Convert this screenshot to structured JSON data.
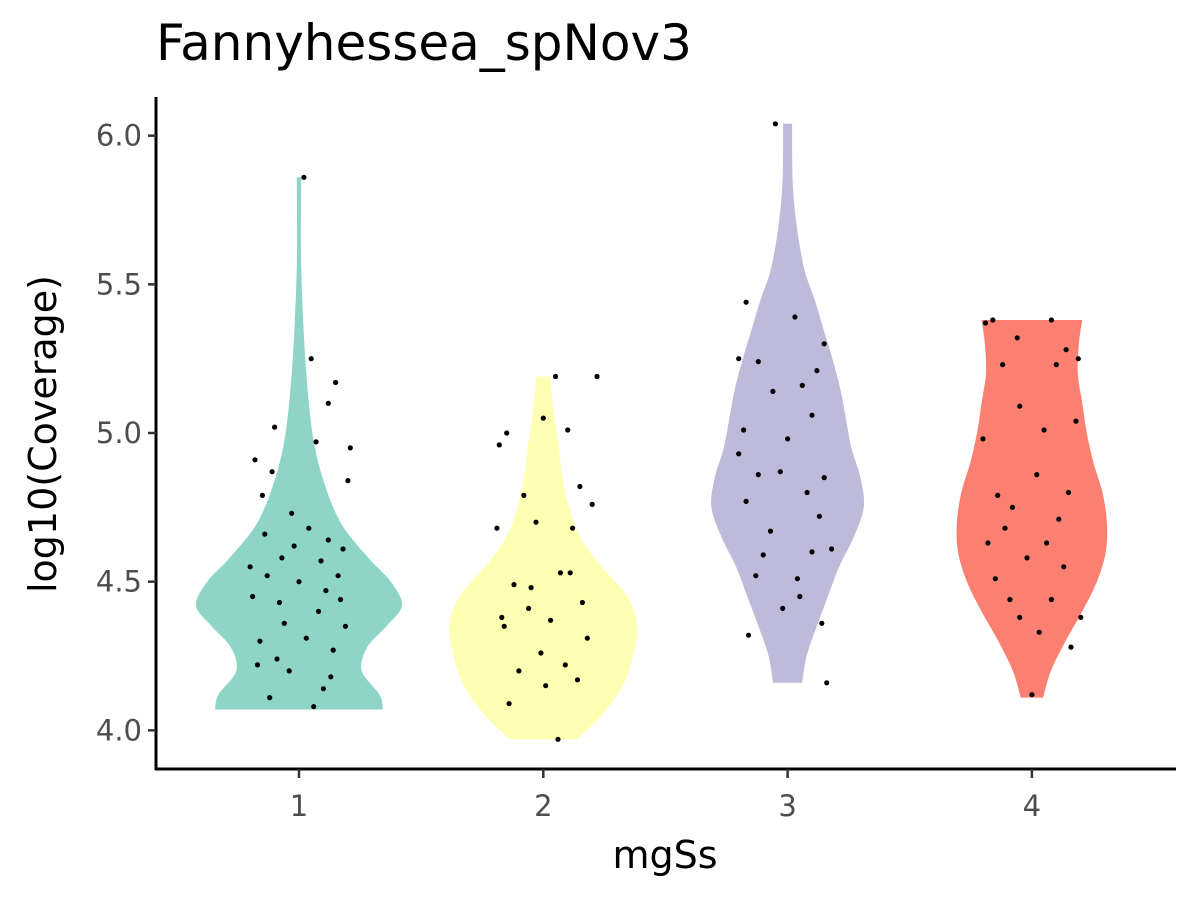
{
  "chart_data": {
    "type": "violin",
    "title": "Fannyhessea_spNov3",
    "xlabel": "mgSs",
    "ylabel": "log10(Coverage)",
    "categories": [
      "1",
      "2",
      "3",
      "4"
    ],
    "ylim": [
      3.87,
      6.13
    ],
    "yticks": [
      4.0,
      4.5,
      5.0,
      5.5,
      6.0
    ],
    "ytick_labels": [
      "4.0",
      "4.5",
      "5.0",
      "5.5",
      "6.0"
    ],
    "grid": false,
    "legend": "none",
    "series": [
      {
        "category": "1",
        "color": "#8ED5C8",
        "ymin": 4.07,
        "ymax": 5.86,
        "density": [
          [
            4.07,
            0.75
          ],
          [
            4.12,
            0.72
          ],
          [
            4.2,
            0.56
          ],
          [
            4.28,
            0.61
          ],
          [
            4.35,
            0.78
          ],
          [
            4.42,
            0.92
          ],
          [
            4.5,
            0.82
          ],
          [
            4.58,
            0.62
          ],
          [
            4.7,
            0.37
          ],
          [
            4.85,
            0.21
          ],
          [
            5.0,
            0.12
          ],
          [
            5.2,
            0.065
          ],
          [
            5.4,
            0.035
          ],
          [
            5.6,
            0.018
          ],
          [
            5.86,
            0.02
          ]
        ],
        "points": [
          [
            -0.18,
            4.91
          ],
          [
            0.02,
            5.86
          ],
          [
            0.05,
            5.25
          ],
          [
            -0.1,
            5.02
          ],
          [
            0.12,
            5.1
          ],
          [
            -0.15,
            4.79
          ],
          [
            0.2,
            4.84
          ],
          [
            -0.2,
            4.55
          ],
          [
            0.18,
            4.61
          ],
          [
            -0.08,
            4.43
          ],
          [
            0.08,
            4.4
          ],
          [
            -0.16,
            4.3
          ],
          [
            0.14,
            4.27
          ],
          [
            -0.04,
            4.2
          ],
          [
            0.1,
            4.14
          ],
          [
            -0.12,
            4.11
          ],
          [
            0.06,
            4.08
          ],
          [
            0.16,
            4.52
          ],
          [
            -0.02,
            4.62
          ],
          [
            0.04,
            4.68
          ],
          [
            -0.14,
            4.66
          ],
          [
            0.11,
            4.47
          ],
          [
            -0.06,
            4.36
          ],
          [
            0.19,
            4.35
          ],
          [
            -0.19,
            4.45
          ],
          [
            0.0,
            4.5
          ],
          [
            0.13,
            4.18
          ],
          [
            -0.09,
            4.24
          ],
          [
            0.07,
            4.97
          ],
          [
            -0.11,
            4.87
          ],
          [
            0.15,
            5.17
          ],
          [
            -0.03,
            4.73
          ],
          [
            0.09,
            4.57
          ],
          [
            -0.17,
            4.22
          ],
          [
            0.17,
            4.44
          ],
          [
            0.03,
            4.31
          ],
          [
            -0.07,
            4.58
          ],
          [
            0.12,
            4.64
          ],
          [
            -0.13,
            4.52
          ],
          [
            0.21,
            4.95
          ]
        ]
      },
      {
        "category": "2",
        "color": "#FFFFB3",
        "ymin": 3.97,
        "ymax": 5.19,
        "density": [
          [
            3.97,
            0.3
          ],
          [
            4.05,
            0.52
          ],
          [
            4.15,
            0.71
          ],
          [
            4.25,
            0.8
          ],
          [
            4.35,
            0.84
          ],
          [
            4.45,
            0.75
          ],
          [
            4.55,
            0.52
          ],
          [
            4.65,
            0.33
          ],
          [
            4.75,
            0.23
          ],
          [
            4.85,
            0.17
          ],
          [
            4.95,
            0.14
          ],
          [
            5.05,
            0.1
          ],
          [
            5.12,
            0.08
          ],
          [
            5.19,
            0.06
          ]
        ],
        "points": [
          [
            0.22,
            5.19
          ],
          [
            0.05,
            5.19
          ],
          [
            0.0,
            5.05
          ],
          [
            -0.15,
            5.0
          ],
          [
            0.1,
            5.01
          ],
          [
            -0.18,
            4.96
          ],
          [
            0.15,
            4.82
          ],
          [
            -0.08,
            4.79
          ],
          [
            0.2,
            4.76
          ],
          [
            -0.19,
            4.68
          ],
          [
            0.12,
            4.68
          ],
          [
            -0.03,
            4.7
          ],
          [
            0.07,
            4.53
          ],
          [
            -0.12,
            4.49
          ],
          [
            0.16,
            4.43
          ],
          [
            -0.06,
            4.41
          ],
          [
            0.03,
            4.37
          ],
          [
            -0.16,
            4.35
          ],
          [
            0.18,
            4.31
          ],
          [
            -0.01,
            4.26
          ],
          [
            0.09,
            4.22
          ],
          [
            -0.1,
            4.2
          ],
          [
            0.14,
            4.17
          ],
          [
            -0.14,
            4.09
          ],
          [
            0.06,
            3.97
          ],
          [
            -0.05,
            4.48
          ],
          [
            0.11,
            4.53
          ],
          [
            -0.17,
            4.38
          ],
          [
            0.01,
            4.15
          ]
        ]
      },
      {
        "category": "3",
        "color": "#BEBADA",
        "ymin": 4.16,
        "ymax": 6.04,
        "density": [
          [
            4.16,
            0.13
          ],
          [
            4.25,
            0.17
          ],
          [
            4.35,
            0.26
          ],
          [
            4.45,
            0.36
          ],
          [
            4.55,
            0.46
          ],
          [
            4.65,
            0.59
          ],
          [
            4.75,
            0.68
          ],
          [
            4.85,
            0.65
          ],
          [
            4.95,
            0.57
          ],
          [
            5.05,
            0.52
          ],
          [
            5.15,
            0.47
          ],
          [
            5.25,
            0.4
          ],
          [
            5.35,
            0.32
          ],
          [
            5.45,
            0.24
          ],
          [
            5.55,
            0.15
          ],
          [
            5.7,
            0.08
          ],
          [
            5.85,
            0.045
          ],
          [
            6.04,
            0.04
          ]
        ],
        "points": [
          [
            -0.05,
            6.04
          ],
          [
            -0.17,
            5.44
          ],
          [
            0.03,
            5.39
          ],
          [
            0.15,
            5.3
          ],
          [
            -0.2,
            5.25
          ],
          [
            0.12,
            5.21
          ],
          [
            -0.12,
            5.24
          ],
          [
            0.06,
            5.16
          ],
          [
            -0.06,
            5.14
          ],
          [
            0.1,
            5.06
          ],
          [
            -0.18,
            5.01
          ],
          [
            0.0,
            4.98
          ],
          [
            -0.12,
            4.86
          ],
          [
            0.15,
            4.85
          ],
          [
            -0.03,
            4.87
          ],
          [
            0.08,
            4.8
          ],
          [
            -0.17,
            4.77
          ],
          [
            0.13,
            4.72
          ],
          [
            -0.07,
            4.67
          ],
          [
            0.1,
            4.6
          ],
          [
            -0.1,
            4.59
          ],
          [
            0.04,
            4.51
          ],
          [
            -0.02,
            4.41
          ],
          [
            0.14,
            4.36
          ],
          [
            -0.16,
            4.32
          ],
          [
            0.18,
            4.61
          ],
          [
            0.16,
            4.16
          ],
          [
            -0.2,
            4.93
          ],
          [
            0.05,
            4.45
          ],
          [
            -0.13,
            4.52
          ]
        ]
      },
      {
        "category": "4",
        "color": "#FB8072",
        "ymin": 4.11,
        "ymax": 5.38,
        "density": [
          [
            4.11,
            0.1
          ],
          [
            4.2,
            0.17
          ],
          [
            4.3,
            0.3
          ],
          [
            4.4,
            0.45
          ],
          [
            4.5,
            0.58
          ],
          [
            4.6,
            0.66
          ],
          [
            4.7,
            0.67
          ],
          [
            4.8,
            0.63
          ],
          [
            4.9,
            0.55
          ],
          [
            5.0,
            0.49
          ],
          [
            5.1,
            0.45
          ],
          [
            5.2,
            0.41
          ],
          [
            5.3,
            0.42
          ],
          [
            5.38,
            0.45
          ]
        ],
        "points": [
          [
            -0.19,
            5.37
          ],
          [
            -0.16,
            5.38
          ],
          [
            0.08,
            5.38
          ],
          [
            0.14,
            5.28
          ],
          [
            -0.06,
            5.32
          ],
          [
            0.1,
            5.23
          ],
          [
            -0.12,
            5.23
          ],
          [
            0.19,
            5.25
          ],
          [
            -0.2,
            4.98
          ],
          [
            0.18,
            5.04
          ],
          [
            -0.05,
            5.09
          ],
          [
            0.05,
            5.01
          ],
          [
            -0.14,
            4.79
          ],
          [
            0.15,
            4.8
          ],
          [
            0.02,
            4.86
          ],
          [
            -0.08,
            4.75
          ],
          [
            0.11,
            4.71
          ],
          [
            -0.18,
            4.63
          ],
          [
            0.06,
            4.63
          ],
          [
            -0.02,
            4.58
          ],
          [
            0.13,
            4.55
          ],
          [
            -0.15,
            4.51
          ],
          [
            0.08,
            4.44
          ],
          [
            -0.09,
            4.44
          ],
          [
            0.2,
            4.38
          ],
          [
            -0.05,
            4.38
          ],
          [
            0.03,
            4.33
          ],
          [
            0.16,
            4.28
          ],
          [
            0.0,
            4.12
          ],
          [
            -0.11,
            4.68
          ]
        ]
      }
    ]
  }
}
